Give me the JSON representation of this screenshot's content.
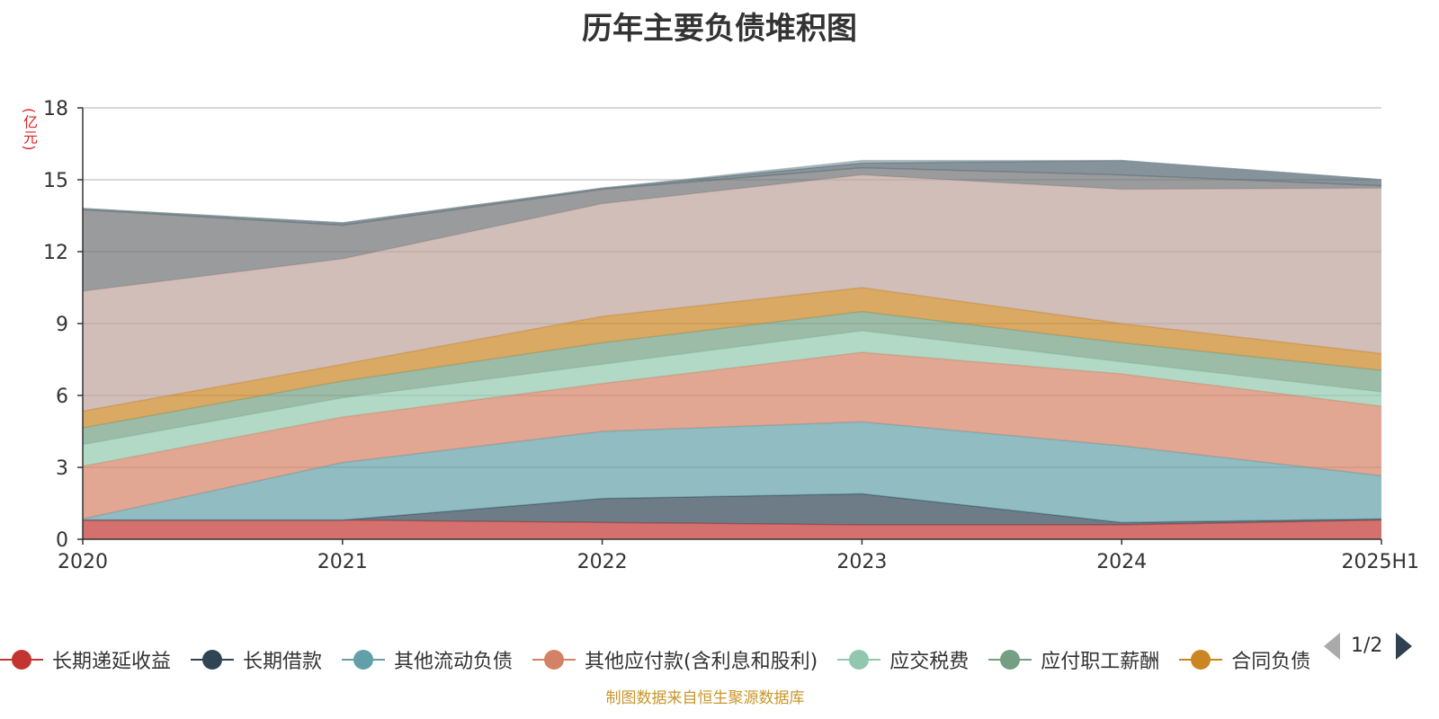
{
  "chart_data": {
    "type": "area",
    "stacked": true,
    "title": "历年主要负债堆积图",
    "ylabel": "(亿元)",
    "categories": [
      "2020",
      "2021",
      "2022",
      "2023",
      "2024",
      "2025H1"
    ],
    "ylim": [
      0,
      18
    ],
    "yticks": [
      0,
      3,
      6,
      9,
      12,
      15,
      18
    ],
    "grid": true,
    "legend_position": "bottom",
    "series": [
      {
        "name": "长期递延收益",
        "color": "#c23531",
        "values": [
          0.8,
          0.8,
          0.7,
          0.6,
          0.6,
          0.8
        ]
      },
      {
        "name": "长期借款",
        "color": "#2f4554",
        "values": [
          0.0,
          0.0,
          1.0,
          1.3,
          0.1,
          0.05
        ]
      },
      {
        "name": "其他流动负债",
        "color": "#61a0a8",
        "values": [
          0.05,
          2.4,
          2.8,
          3.0,
          3.2,
          1.8
        ]
      },
      {
        "name": "其他应付款(含利息和股利)",
        "color": "#d48265",
        "values": [
          2.2,
          1.9,
          2.0,
          2.9,
          3.0,
          2.9
        ]
      },
      {
        "name": "应交税费",
        "color": "#91c7ae",
        "values": [
          0.9,
          0.8,
          0.8,
          0.9,
          0.5,
          0.6
        ]
      },
      {
        "name": "应付职工薪酬",
        "color": "#749f83",
        "values": [
          0.7,
          0.7,
          0.9,
          0.8,
          0.8,
          0.9
        ]
      },
      {
        "name": "合同负债",
        "color": "#ca8622",
        "values": [
          0.7,
          0.7,
          1.1,
          1.0,
          0.8,
          0.7
        ]
      },
      {
        "color": "#bda29a",
        "values": [
          5.0,
          4.4,
          4.7,
          4.7,
          5.6,
          6.9
        ]
      },
      {
        "color": "#6e7074",
        "values": [
          3.4,
          1.4,
          0.6,
          0.3,
          0.6,
          0.1
        ]
      },
      {
        "color": "#546570",
        "values": [
          0.05,
          0.1,
          0.05,
          0.2,
          0.6,
          0.25
        ]
      },
      {
        "color": "#8fa4a8",
        "values": [
          0.0,
          0.0,
          0.0,
          0.1,
          0.0,
          0.0
        ]
      }
    ]
  },
  "legend": {
    "visible_labels": [
      "长期递延收益",
      "长期借款",
      "其他流动负债",
      "其他应付款(含利息和股利)",
      "应交税费",
      "应付职工薪酬",
      "合同负债"
    ],
    "page_indicator": "1/2"
  },
  "source_text": "制图数据来自恒生聚源数据库"
}
